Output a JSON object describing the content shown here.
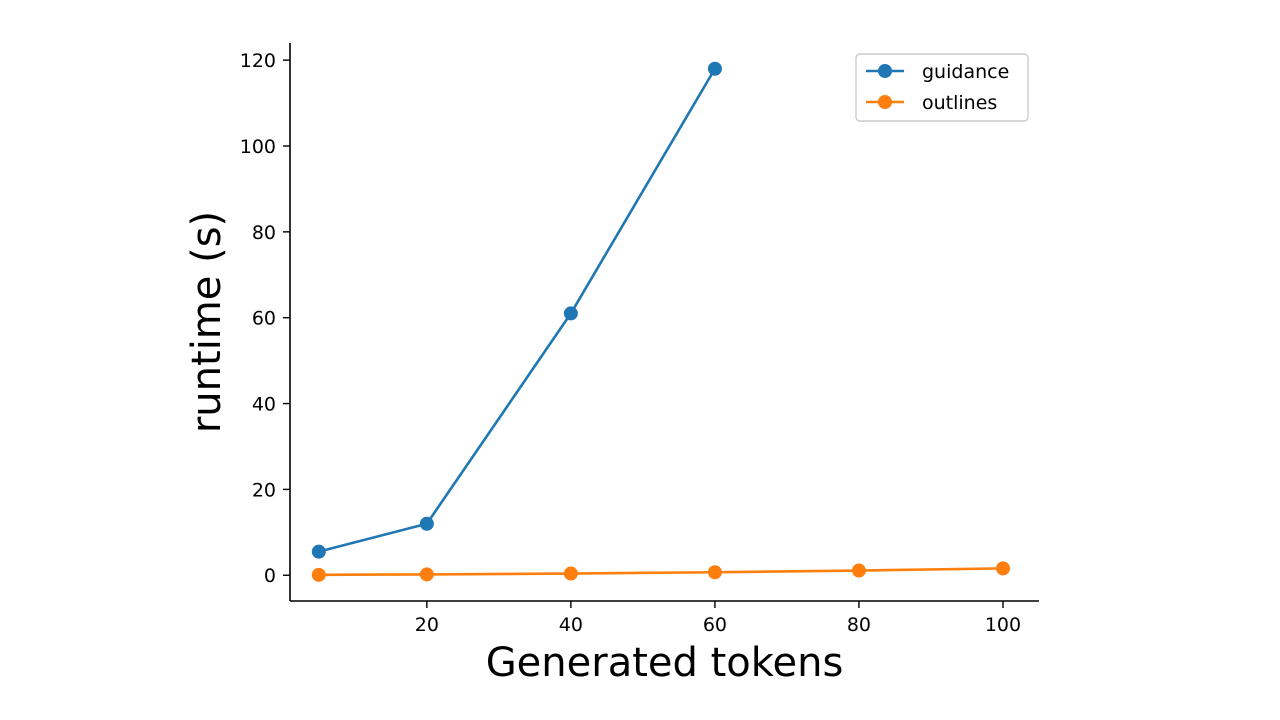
{
  "chart_data": {
    "type": "line",
    "title": "",
    "xlabel": "Generated tokens",
    "ylabel": "runtime (s)",
    "xlim": [
      1,
      105
    ],
    "ylim": [
      -6,
      124
    ],
    "xticks": [
      20,
      40,
      60,
      80,
      100
    ],
    "yticks": [
      0,
      20,
      40,
      60,
      80,
      100,
      120
    ],
    "grid": false,
    "legend_position": "top-right",
    "series": [
      {
        "name": "guidance",
        "color": "#1f77b4",
        "x": [
          5,
          20,
          40,
          60
        ],
        "y": [
          5.5,
          12,
          61,
          118
        ]
      },
      {
        "name": "outlines",
        "color": "#ff7f0e",
        "x": [
          5,
          20,
          40,
          60,
          80,
          100
        ],
        "y": [
          0.1,
          0.2,
          0.4,
          0.7,
          1.1,
          1.6
        ]
      }
    ]
  }
}
